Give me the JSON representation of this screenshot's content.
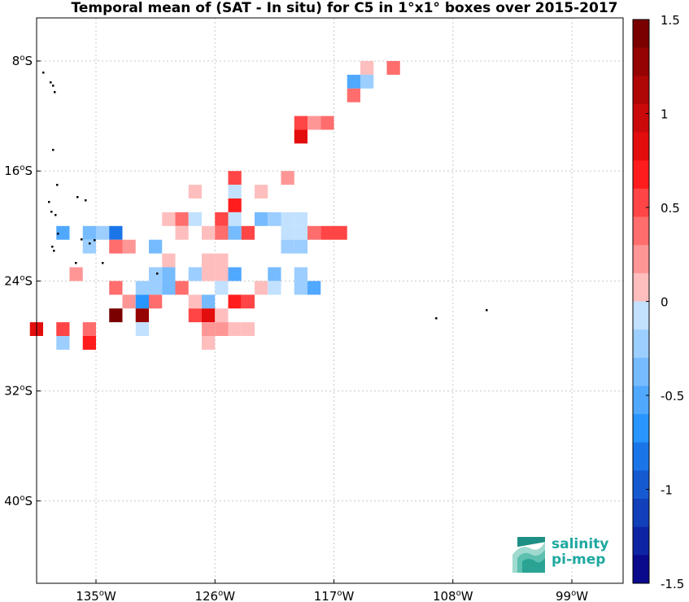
{
  "title": "Temporal mean of (SAT - In situ) for C5 in 1°x1° boxes over 2015-2017",
  "map": {
    "lon_ticks": [
      "135",
      "126",
      "117",
      "108",
      "99"
    ],
    "lon_hemisphere": "W",
    "lat_ticks": [
      "8",
      "16",
      "24",
      "32",
      "40"
    ],
    "lat_hemisphere": "S",
    "degree_symbol": "o",
    "grid": true
  },
  "colorbar": {
    "range": [
      -1.5,
      1.5
    ],
    "tick_labels": [
      "1.5",
      "1",
      "0.5",
      "0",
      "-0.5",
      "-1",
      "-1.5"
    ],
    "negative_color": "#0a0a8c",
    "positive_color": "#7a0000"
  },
  "logo": {
    "line1": "salinity",
    "line2": "pi-mep"
  },
  "cells": [
    {
      "lon": -114.5,
      "lat": -8.5,
      "v": 0.15
    },
    {
      "lon": -112.5,
      "lat": -8.5,
      "v": 0.4
    },
    {
      "lon": -115.5,
      "lat": -9.5,
      "v": -0.6
    },
    {
      "lon": -114.5,
      "lat": -9.5,
      "v": -0.3
    },
    {
      "lon": -115.5,
      "lat": -10.5,
      "v": 0.35
    },
    {
      "lon": -119.5,
      "lat": -12.5,
      "v": 0.5
    },
    {
      "lon": -118.5,
      "lat": -12.5,
      "v": 0.3
    },
    {
      "lon": -117.5,
      "lat": -12.5,
      "v": 0.4
    },
    {
      "lon": -119.5,
      "lat": -13.5,
      "v": 0.9
    },
    {
      "lon": -124.5,
      "lat": -16.5,
      "v": 0.6
    },
    {
      "lon": -120.5,
      "lat": -16.5,
      "v": 0.3
    },
    {
      "lon": -127.5,
      "lat": -17.5,
      "v": 0.15
    },
    {
      "lon": -124.5,
      "lat": -17.5,
      "v": -0.15
    },
    {
      "lon": -122.5,
      "lat": -17.5,
      "v": 0.15
    },
    {
      "lon": -124.5,
      "lat": -18.5,
      "v": 0.7
    },
    {
      "lon": -129.5,
      "lat": -19.5,
      "v": 0.15
    },
    {
      "lon": -128.5,
      "lat": -19.5,
      "v": 0.4
    },
    {
      "lon": -127.5,
      "lat": -19.5,
      "v": -0.15
    },
    {
      "lon": -125.5,
      "lat": -19.5,
      "v": 0.6
    },
    {
      "lon": -124.5,
      "lat": -19.5,
      "v": -0.15
    },
    {
      "lon": -122.5,
      "lat": -19.5,
      "v": -0.4
    },
    {
      "lon": -121.5,
      "lat": -19.5,
      "v": -0.3
    },
    {
      "lon": -120.5,
      "lat": -19.5,
      "v": -0.15
    },
    {
      "lon": -119.5,
      "lat": -19.5,
      "v": -0.15
    },
    {
      "lon": -137.5,
      "lat": -20.5,
      "v": -0.6
    },
    {
      "lon": -135.5,
      "lat": -20.5,
      "v": -0.4
    },
    {
      "lon": -134.5,
      "lat": -20.5,
      "v": -0.3
    },
    {
      "lon": -133.5,
      "lat": -20.5,
      "v": -0.8
    },
    {
      "lon": -128.5,
      "lat": -20.5,
      "v": 0.15
    },
    {
      "lon": -126.5,
      "lat": -20.5,
      "v": 0.15
    },
    {
      "lon": -125.5,
      "lat": -20.5,
      "v": 0.4
    },
    {
      "lon": -124.5,
      "lat": -20.5,
      "v": -0.4
    },
    {
      "lon": -123.5,
      "lat": -20.5,
      "v": 0.5
    },
    {
      "lon": -120.5,
      "lat": -20.5,
      "v": -0.15
    },
    {
      "lon": -119.5,
      "lat": -20.5,
      "v": -0.15
    },
    {
      "lon": -118.5,
      "lat": -20.5,
      "v": 0.4
    },
    {
      "lon": -117.5,
      "lat": -20.5,
      "v": 0.5
    },
    {
      "lon": -116.5,
      "lat": -20.5,
      "v": 0.6
    },
    {
      "lon": -135.5,
      "lat": -21.5,
      "v": -0.3
    },
    {
      "lon": -133.5,
      "lat": -21.5,
      "v": 0.4
    },
    {
      "lon": -132.5,
      "lat": -21.5,
      "v": 0.3
    },
    {
      "lon": -130.5,
      "lat": -21.5,
      "v": -0.4
    },
    {
      "lon": -120.5,
      "lat": -21.5,
      "v": -0.2
    },
    {
      "lon": -119.5,
      "lat": -21.5,
      "v": -0.2
    },
    {
      "lon": -129.5,
      "lat": -22.5,
      "v": 0.15
    },
    {
      "lon": -126.5,
      "lat": -22.5,
      "v": 0.15
    },
    {
      "lon": -125.5,
      "lat": -22.5,
      "v": 0.15
    },
    {
      "lon": -136.5,
      "lat": -23.5,
      "v": 0.3
    },
    {
      "lon": -130.5,
      "lat": -23.5,
      "v": -0.3
    },
    {
      "lon": -129.5,
      "lat": -23.5,
      "v": -0.4
    },
    {
      "lon": -127.5,
      "lat": -23.5,
      "v": -0.2
    },
    {
      "lon": -126.5,
      "lat": -23.5,
      "v": 0.15
    },
    {
      "lon": -125.5,
      "lat": -23.5,
      "v": 0.15
    },
    {
      "lon": -124.5,
      "lat": -23.5,
      "v": -0.5
    },
    {
      "lon": -121.5,
      "lat": -23.5,
      "v": -0.4
    },
    {
      "lon": -119.5,
      "lat": -23.5,
      "v": -0.3
    },
    {
      "lon": -133.5,
      "lat": -24.5,
      "v": 0.4
    },
    {
      "lon": -131.5,
      "lat": -24.5,
      "v": -0.2
    },
    {
      "lon": -130.5,
      "lat": -24.5,
      "v": -0.3
    },
    {
      "lon": -129.5,
      "lat": -24.5,
      "v": -0.4
    },
    {
      "lon": -128.5,
      "lat": -24.5,
      "v": 0.4
    },
    {
      "lon": -125.5,
      "lat": -24.5,
      "v": -0.15
    },
    {
      "lon": -122.5,
      "lat": -24.5,
      "v": 0.15
    },
    {
      "lon": -121.5,
      "lat": -24.5,
      "v": -0.15
    },
    {
      "lon": -119.5,
      "lat": -24.5,
      "v": -0.2
    },
    {
      "lon": -118.5,
      "lat": -24.5,
      "v": -0.5
    },
    {
      "lon": -132.5,
      "lat": -25.5,
      "v": 0.3
    },
    {
      "lon": -131.5,
      "lat": -25.5,
      "v": -0.7
    },
    {
      "lon": -130.5,
      "lat": -25.5,
      "v": 0.4
    },
    {
      "lon": -127.5,
      "lat": -25.5,
      "v": 0.15
    },
    {
      "lon": -126.5,
      "lat": -25.5,
      "v": -0.4
    },
    {
      "lon": -124.5,
      "lat": -25.5,
      "v": 0.7
    },
    {
      "lon": -123.5,
      "lat": -25.5,
      "v": 0.5
    },
    {
      "lon": -133.5,
      "lat": -26.5,
      "v": 1.5
    },
    {
      "lon": -131.5,
      "lat": -26.5,
      "v": 1.3
    },
    {
      "lon": -127.5,
      "lat": -26.5,
      "v": 0.5
    },
    {
      "lon": -126.5,
      "lat": -26.5,
      "v": 0.9
    },
    {
      "lon": -125.5,
      "lat": -26.5,
      "v": 0.15
    },
    {
      "lon": -139.5,
      "lat": -27.5,
      "v": 0.8
    },
    {
      "lon": -137.5,
      "lat": -27.5,
      "v": 0.6
    },
    {
      "lon": -135.5,
      "lat": -27.5,
      "v": 0.4
    },
    {
      "lon": -131.5,
      "lat": -27.5,
      "v": -0.15
    },
    {
      "lon": -126.5,
      "lat": -27.5,
      "v": 0.3
    },
    {
      "lon": -125.5,
      "lat": -27.5,
      "v": 0.3
    },
    {
      "lon": -124.5,
      "lat": -27.5,
      "v": 0.15
    },
    {
      "lon": -123.5,
      "lat": -27.5,
      "v": 0.15
    },
    {
      "lon": -137.5,
      "lat": -28.5,
      "v": -0.3
    },
    {
      "lon": -135.5,
      "lat": -28.5,
      "v": 0.7
    },
    {
      "lon": -126.5,
      "lat": -28.5,
      "v": 0.15
    }
  ]
}
